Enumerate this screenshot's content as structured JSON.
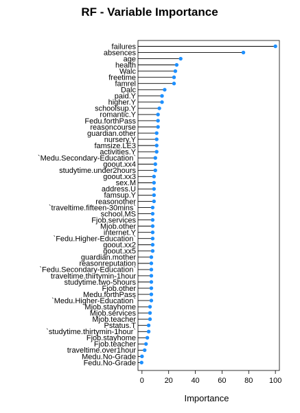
{
  "chart_data": {
    "type": "lollipop",
    "title": "RF - Variable Importance",
    "xlabel": "Importance",
    "ylabel": "",
    "xlim": [
      -3,
      103
    ],
    "xticks": [
      0,
      20,
      40,
      60,
      80,
      100
    ],
    "grid": false,
    "legend": "none",
    "point_color": "#1E90FF",
    "categories": [
      "failures",
      "absences",
      "age",
      "health",
      "Walc",
      "freetime",
      "famrel",
      "Dalc",
      "paid.Y",
      "higher.Y",
      "schoolsup.Y",
      "romantic.Y",
      "Fedu.forthPass",
      "reasoncourse",
      "guardian.other",
      "nursery.Y",
      "famsize.LE3",
      "activities.Y",
      "`Medu.Secondary-Education`",
      "goout.xx4",
      "studytime.under2hours",
      "goout.xx3",
      "sex.M",
      "address.U",
      "famsup.Y",
      "reasonother",
      "`traveltime.fifteen-30mins`",
      "school.MS",
      "Fjob.services",
      "Mjob.other",
      "internet.Y",
      "`Fedu.Higher-Education`",
      "goout.xx2",
      "goout.xx5",
      "guardian.mother",
      "reasonreputation",
      "`Fedu.Secondary-Education`",
      "traveltime.thirtymin-1hour",
      "studytime.two-5hours",
      "Fjob.other",
      "Medu.forthPass",
      "`Medu.Higher-Education`",
      "Mjob.stayhome",
      "Mjob.services",
      "Mjob.teacher",
      "Pstatus.T",
      "`studytime.thirtymin-1hour`",
      "Fjob.stayhome",
      "Fjob.teacher",
      "traveltime.over1hour",
      "Medu.No-Grade",
      "Fedu.No-Grade"
    ],
    "values": [
      100,
      76,
      29,
      26,
      25,
      24,
      24,
      17,
      15,
      15,
      13,
      12,
      12,
      12,
      11,
      11,
      11,
      11,
      10,
      10,
      10,
      9,
      9,
      9,
      9,
      9,
      8,
      8,
      8,
      8,
      8,
      8,
      8,
      8,
      7,
      7,
      7,
      7,
      7,
      7,
      7,
      7,
      6,
      6,
      6,
      5,
      5,
      4,
      3,
      2,
      0,
      -0.3
    ]
  }
}
